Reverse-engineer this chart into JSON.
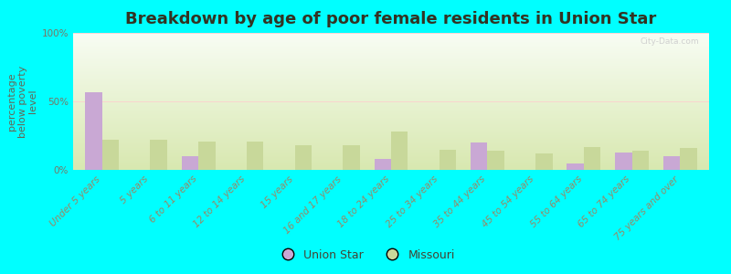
{
  "title": "Breakdown by age of poor female residents in Union Star",
  "ylabel": "percentage\nbelow poverty\nlevel",
  "categories": [
    "Under 5 years",
    "5 years",
    "6 to 11 years",
    "12 to 14 years",
    "15 years",
    "16 and 17 years",
    "18 to 24 years",
    "25 to 34 years",
    "35 to 44 years",
    "45 to 54 years",
    "55 to 64 years",
    "65 to 74 years",
    "75 years and over"
  ],
  "union_star": [
    57,
    0,
    10,
    0,
    0,
    0,
    8,
    0,
    20,
    0,
    5,
    13,
    10
  ],
  "missouri": [
    22,
    22,
    21,
    21,
    18,
    18,
    28,
    15,
    14,
    12,
    17,
    14,
    16
  ],
  "union_star_color": "#c9a8d4",
  "missouri_color": "#c8d89a",
  "fig_bg_color": "#00ffff",
  "plot_bg_gradient_top": "#d8e8b0",
  "plot_bg_gradient_bottom": "#f8fdf4",
  "ylim": [
    0,
    100
  ],
  "yticks": [
    0,
    50,
    100
  ],
  "ytick_labels": [
    "0%",
    "50%",
    "100%"
  ],
  "bar_width": 0.35,
  "title_fontsize": 13,
  "ylabel_fontsize": 8,
  "tick_fontsize": 7.5,
  "legend_labels": [
    "Union Star",
    "Missouri"
  ],
  "grid_color": "#ffcccc",
  "watermark": "City-Data.com"
}
